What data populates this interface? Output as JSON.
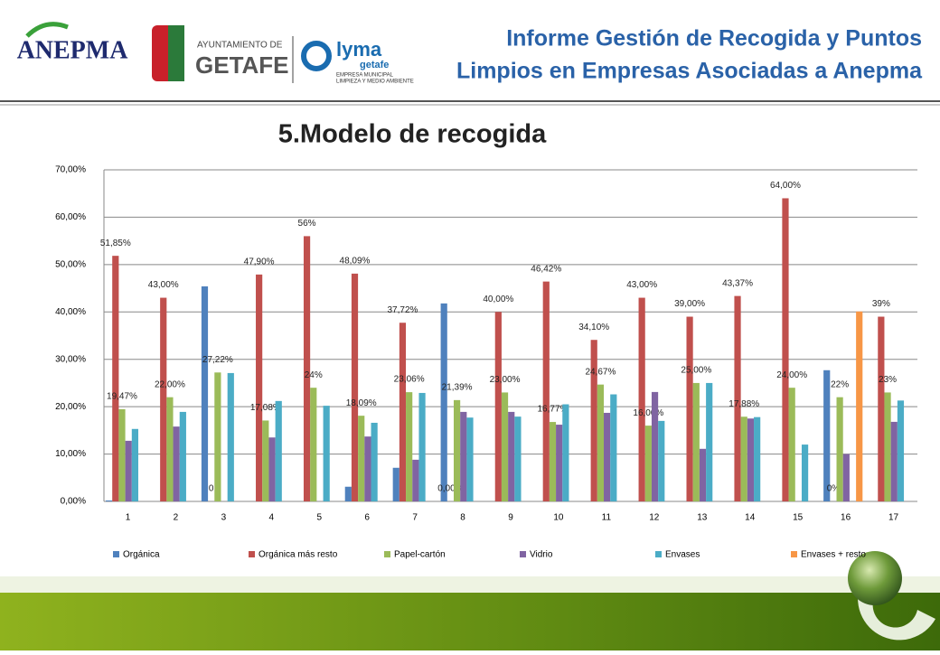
{
  "header": {
    "title_line1": "Informe Gestión de Recogida y Puntos",
    "title_line2": "Limpios en Empresas Asociadas a Anepma",
    "logo1": "ANEPMA",
    "logo2_top": "AYUNTAMIENTO DE",
    "logo2_main": "GETAFE",
    "logo3_main": "lyma",
    "logo3_sub": "getafe",
    "logo3_line1": "EMPRESA MUNICIPAL",
    "logo3_line2": "LIMPIEZA Y MEDIO AMBIENTE"
  },
  "chart_data": {
    "type": "bar",
    "title": "5.Modelo de recogida",
    "categories": [
      "1",
      "2",
      "3",
      "4",
      "5",
      "6",
      "7",
      "8",
      "9",
      "10",
      "11",
      "12",
      "13",
      "14",
      "15",
      "16",
      "17"
    ],
    "ylim": [
      0,
      70
    ],
    "yticks": [
      {
        "value": 0,
        "label": "0,00%"
      },
      {
        "value": 10,
        "label": "10,00%"
      },
      {
        "value": 20,
        "label": "20,00%"
      },
      {
        "value": 30,
        "label": "30,00%"
      },
      {
        "value": 40,
        "label": "40,00%"
      },
      {
        "value": 50,
        "label": "50,00%"
      },
      {
        "value": 60,
        "label": "60,00%"
      },
      {
        "value": 70,
        "label": "70,00%"
      }
    ],
    "grid": true,
    "legend": "bottom",
    "series": [
      {
        "name": "Orgánica",
        "color": "#4f81bd",
        "values": [
          0.2,
          null,
          45.4,
          null,
          null,
          3.1,
          7.1,
          41.8,
          null,
          null,
          null,
          null,
          null,
          null,
          null,
          27.7,
          null
        ]
      },
      {
        "name": "Orgánica más resto",
        "color": "#c0504d",
        "values": [
          51.85,
          43,
          0,
          47.9,
          56,
          48.09,
          37.72,
          0,
          40,
          46.42,
          34.1,
          43,
          39,
          43.37,
          64,
          0,
          39
        ],
        "value_labels": [
          "51,85%",
          "43,00%",
          "0",
          "47,90%",
          "56%",
          "48,09%",
          "37,72%",
          "0,00%",
          "40,00%",
          "46,42%",
          "34,10%",
          "43,00%",
          "39,00%",
          "43,37%",
          "64,00%",
          "0%",
          "39%"
        ]
      },
      {
        "name": "Papel-cartón",
        "color": "#9bbb59",
        "values": [
          19.47,
          22,
          27.22,
          17.08,
          24,
          18.09,
          23.06,
          21.39,
          23,
          16.77,
          24.67,
          16,
          25,
          17.88,
          24,
          22,
          23
        ],
        "value_labels": [
          "19,47%",
          "22,00%",
          "27,22%",
          "17,08%",
          "24%",
          "18,09%",
          "23,06%",
          "21,39%",
          "23,00%",
          "16,77%",
          "24,67%",
          "16,00%",
          "25,00%",
          "17,88%",
          "24,00%",
          "22%",
          "23%"
        ]
      },
      {
        "name": "Vidrio",
        "color": "#8064a2",
        "values": [
          12.8,
          15.8,
          null,
          13.5,
          null,
          13.7,
          8.8,
          18.9,
          18.9,
          16.2,
          18.7,
          23.1,
          11.1,
          17.5,
          null,
          10,
          16.8
        ]
      },
      {
        "name": "Envases",
        "color": "#4bacc6",
        "values": [
          15.3,
          18.9,
          27.1,
          21.2,
          20.2,
          16.6,
          22.9,
          17.7,
          17.9,
          20.5,
          22.6,
          17,
          25,
          17.8,
          12,
          null,
          21.3
        ]
      },
      {
        "name": "Envases + resto",
        "color": "#f79646",
        "values": [
          null,
          null,
          null,
          null,
          null,
          null,
          null,
          null,
          null,
          null,
          null,
          null,
          null,
          null,
          null,
          40.1,
          null
        ]
      }
    ]
  }
}
